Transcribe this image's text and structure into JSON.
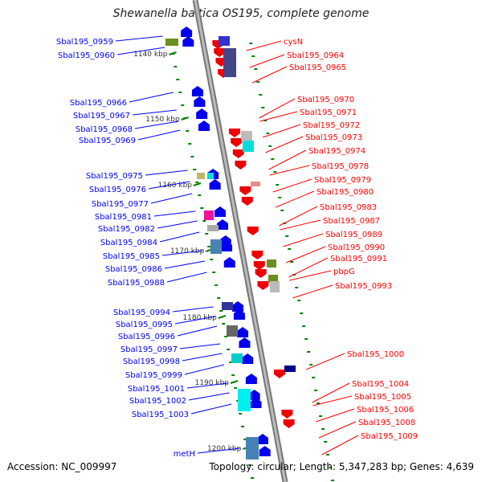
{
  "title": "Shewanella baltica OS195, complete genome",
  "footer": {
    "accession": "Accession: NC_009997",
    "topology": "Topology: circular; Length: 5,347,283 bp; Genes: 4,639"
  },
  "colors": {
    "left": "#0000ff",
    "right": "#ff0000",
    "backbone": "#999999",
    "ticks": "#008000"
  },
  "left_labels": [
    "Sbal195_0959",
    "Sbal195_0960",
    "Sbal195_0966",
    "Sbal195_0967",
    "Sbal195_0968",
    "Sbal195_0969",
    "Sbal195_0975",
    "Sbal195_0976",
    "Sbal195_0977",
    "Sbal195_0981",
    "Sbal195_0982",
    "Sbal195_0984",
    "Sbal195_0985",
    "Sbal195_0986",
    "Sbal195_0988",
    "Sbal195_0994",
    "Sbal195_0995",
    "Sbal195_0996",
    "Sbal195_0997",
    "Sbal195_0998",
    "Sbal195_0999",
    "Sbal195_1001",
    "Sbal195_1002",
    "Sbal195_1003",
    "metH"
  ],
  "right_labels": [
    "cysN",
    "Sbal195_0964",
    "Sbal195_0965",
    "Sbal195_0970",
    "Sbal195_0971",
    "Sbal195_0972",
    "Sbal195_0973",
    "Sbal195_0974",
    "Sbal195_0978",
    "Sbal195_0979",
    "Sbal195_0980",
    "Sbal195_0983",
    "Sbal195_0987",
    "Sbal195_0989",
    "Sbal195_0990",
    "Sbal195_0991",
    "pbpG",
    "Sbal195_0993",
    "Sbal195_1000",
    "Sbal195_1004",
    "Sbal195_1005",
    "Sbal195_1006",
    "Sbal195_1008",
    "Sbal195_1009"
  ],
  "scale_labels": [
    "1140 kbp",
    "1150 kbp",
    "1160 kbp",
    "1170 kbp",
    "1180 kbp",
    "1190 kbp",
    "1200 kbp"
  ]
}
